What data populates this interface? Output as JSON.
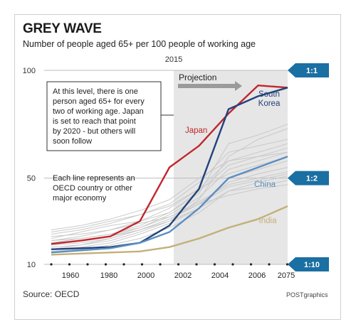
{
  "header": {
    "title": "GREY WAVE",
    "subtitle": "Number of people aged 65+ per 100 people of working age"
  },
  "footer": {
    "source": "Source: OECD",
    "credit": "POSTgraphics"
  },
  "annotations": {
    "year_marker": "2015",
    "projection": "Projection",
    "callout": "At this level, there is one person aged 65+ for every two of working age. Japan is set to reach that point by 2020 - but others will soon follow",
    "note": "Each line represents an OECD country or other major economy"
  },
  "ratio_tags": [
    {
      "label": "1:1",
      "value": 100
    },
    {
      "label": "1:2",
      "value": 50
    },
    {
      "label": "1:10",
      "value": 10
    }
  ],
  "colors": {
    "japan": "#c0272d",
    "south_korea": "#22427c",
    "china": "#5b8ec0",
    "india": "#c2b07a",
    "others": "#c9c9c9",
    "projection_band": "#e6e6e6",
    "tag": "#1a6fa3"
  },
  "chart_data": {
    "type": "line",
    "title": "GREY WAVE",
    "subtitle": "Number of people aged 65+ per 100 people of working age",
    "x_tick_labels": [
      "1960",
      "1980",
      "2000",
      "2002",
      "2004",
      "2006",
      "2075"
    ],
    "y_ticks": [
      10,
      50,
      100
    ],
    "ylim": [
      10,
      100
    ],
    "grid": "horizontal",
    "projection_start": "2015",
    "points_per_series": 9,
    "series": [
      {
        "name": "Japan",
        "color": "#c0272d",
        "values": [
          19.5,
          21,
          23,
          30,
          55,
          65,
          80,
          93,
          92
        ]
      },
      {
        "name": "South Korea",
        "color": "#22427c",
        "values": [
          17,
          17.5,
          18,
          20,
          28,
          45,
          82,
          88,
          92
        ]
      },
      {
        "name": "China",
        "color": "#5b8ec0",
        "values": [
          15.5,
          16.5,
          17.5,
          20,
          25,
          36,
          50,
          55,
          60
        ]
      },
      {
        "name": "India",
        "color": "#c2b07a",
        "values": [
          14.5,
          15,
          15.5,
          16,
          18,
          22,
          27,
          31,
          37
        ]
      }
    ],
    "background_series": [
      [
        21,
        23,
        26,
        30,
        36,
        45,
        58,
        62,
        66
      ],
      [
        24,
        26,
        29,
        33,
        38,
        48,
        62,
        65,
        68
      ],
      [
        19,
        20,
        22,
        26,
        31,
        38,
        48,
        52,
        55
      ],
      [
        22,
        25,
        28,
        30,
        34,
        44,
        56,
        60,
        64
      ],
      [
        17,
        18,
        20,
        24,
        29,
        36,
        50,
        54,
        58
      ],
      [
        25,
        27,
        30,
        33,
        37,
        45,
        52,
        56,
        60
      ],
      [
        20,
        22,
        24,
        27,
        33,
        41,
        54,
        58,
        62
      ],
      [
        18,
        19,
        21,
        25,
        30,
        40,
        60,
        68,
        73
      ],
      [
        23,
        24,
        26,
        29,
        32,
        38,
        46,
        49,
        52
      ],
      [
        16,
        17,
        19,
        22,
        27,
        34,
        44,
        48,
        51
      ],
      [
        21,
        22,
        24,
        28,
        34,
        43,
        66,
        70,
        75
      ],
      [
        19,
        21,
        23,
        27,
        32,
        39,
        47,
        50,
        53
      ],
      [
        26,
        28,
        31,
        35,
        40,
        50,
        58,
        60,
        62
      ],
      [
        17,
        19,
        22,
        26,
        31,
        38,
        42,
        45,
        47
      ],
      [
        20,
        21,
        23,
        26,
        30,
        36,
        44,
        46,
        49
      ]
    ]
  }
}
